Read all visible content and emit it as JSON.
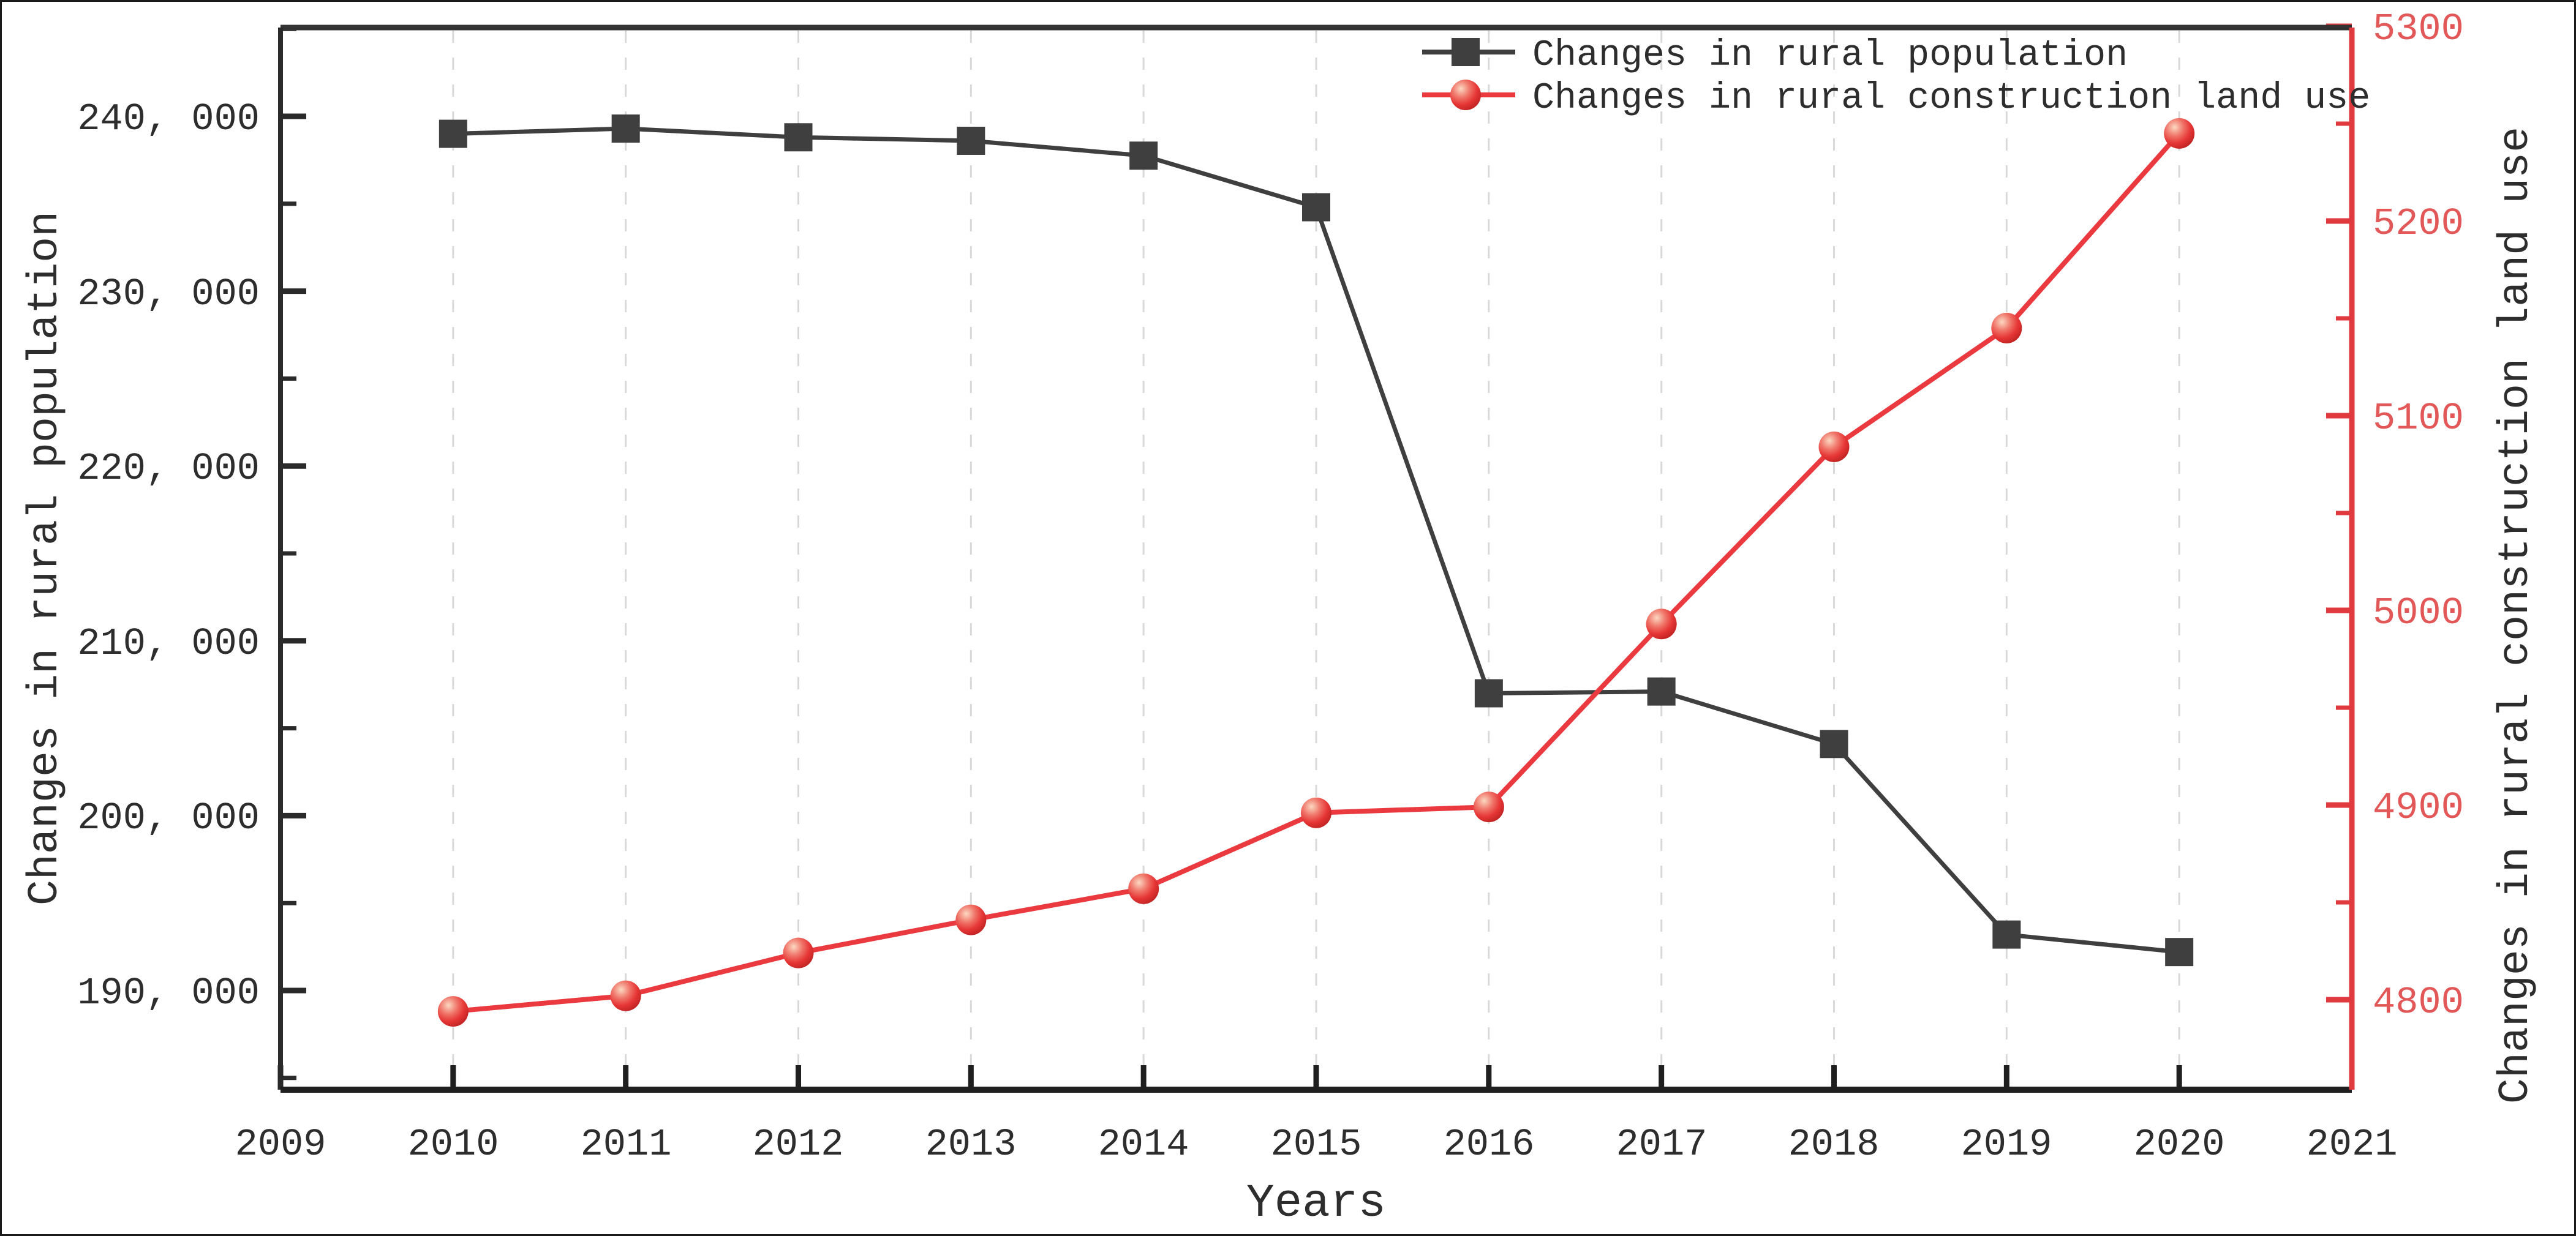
{
  "figure": {
    "background": "#ffffff",
    "border_color": "#1b1b1b"
  },
  "chart_data": {
    "type": "line",
    "title": "",
    "xlabel": "Years",
    "x_tick_labels": [
      "2009",
      "2010",
      "2011",
      "2012",
      "2013",
      "2014",
      "2015",
      "2016",
      "2017",
      "2018",
      "2019",
      "2020",
      "2021"
    ],
    "x_axis_range": [
      2009,
      2021
    ],
    "grid": {
      "style": "vertical-dashed",
      "color": "#d9d9d9"
    },
    "legend_position": "top-right-inside",
    "left_axis": {
      "title": "Changes in rural population",
      "tick_labels": [
        "240, 000",
        "230, 000",
        "220, 000",
        "210, 000",
        "200, 000",
        "190, 000"
      ],
      "tick_values": [
        240000,
        230000,
        220000,
        210000,
        200000,
        190000
      ],
      "minor_tick_values": [
        245000,
        235000,
        225000,
        215000,
        205000,
        195000,
        185000
      ],
      "range_note": "major step 10000, minor step 5000",
      "color": "#2a2a2a",
      "label_color": "#2d2d2d"
    },
    "right_axis": {
      "title": "Changes in rural construction land use",
      "tick_labels": [
        "5300",
        "5200",
        "5100",
        "5000",
        "4900",
        "4800"
      ],
      "tick_values": [
        5300,
        5200,
        5100,
        5000,
        4900,
        4800
      ],
      "minor_tick_values": [
        5250,
        5150,
        5050,
        4950,
        4850
      ],
      "range_note": "major step 100, minor step 50",
      "color": "#e0393e",
      "label_color": "#e25757"
    },
    "x": [
      2010,
      2011,
      2012,
      2013,
      2014,
      2015,
      2016,
      2017,
      2018,
      2019,
      2020
    ],
    "series": [
      {
        "name": "Changes in rural population",
        "axis": "left",
        "marker": "square",
        "color": "#3f3f3f",
        "values": [
          239000,
          239300,
          238800,
          238600,
          237750,
          234800,
          207000,
          207100,
          204100,
          193200,
          192200
        ]
      },
      {
        "name": "Changes in rural construction land use",
        "axis": "right",
        "marker": "ball",
        "color": "#ea3a40",
        "values": [
          4794,
          4802,
          4824,
          4841,
          4857,
          4896,
          4899,
          4993,
          5084,
          5145,
          5245
        ]
      }
    ],
    "legend": {
      "items": [
        "Changes in rural population",
        "Changes in rural construction land use"
      ]
    }
  }
}
